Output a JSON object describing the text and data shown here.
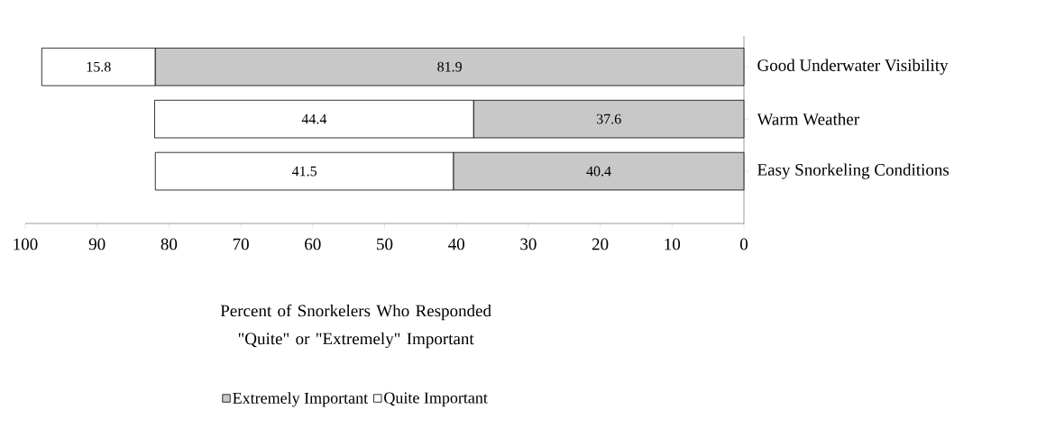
{
  "chart_data": {
    "type": "bar",
    "orientation": "horizontal",
    "stacked": true,
    "categories": [
      "Good Underwater Visibility",
      "Warm Weather",
      "Easy Snorkeling Conditions"
    ],
    "series": [
      {
        "name": "Extremely Important",
        "color": "#c8c8c8",
        "values": [
          81.9,
          37.6,
          40.4
        ]
      },
      {
        "name": "Quite Important",
        "color": "#ffffff",
        "values": [
          15.8,
          44.4,
          41.5
        ]
      }
    ],
    "xlim": [
      100,
      0
    ],
    "xticks": [
      100,
      90,
      80,
      70,
      60,
      50,
      40,
      30,
      20,
      10,
      0
    ],
    "xlabel": "Percent of Snorkelers Who Responded \"Quite\" or \"Extremely\" Important",
    "data_labels": true,
    "legend": "bottom",
    "grid": false
  }
}
